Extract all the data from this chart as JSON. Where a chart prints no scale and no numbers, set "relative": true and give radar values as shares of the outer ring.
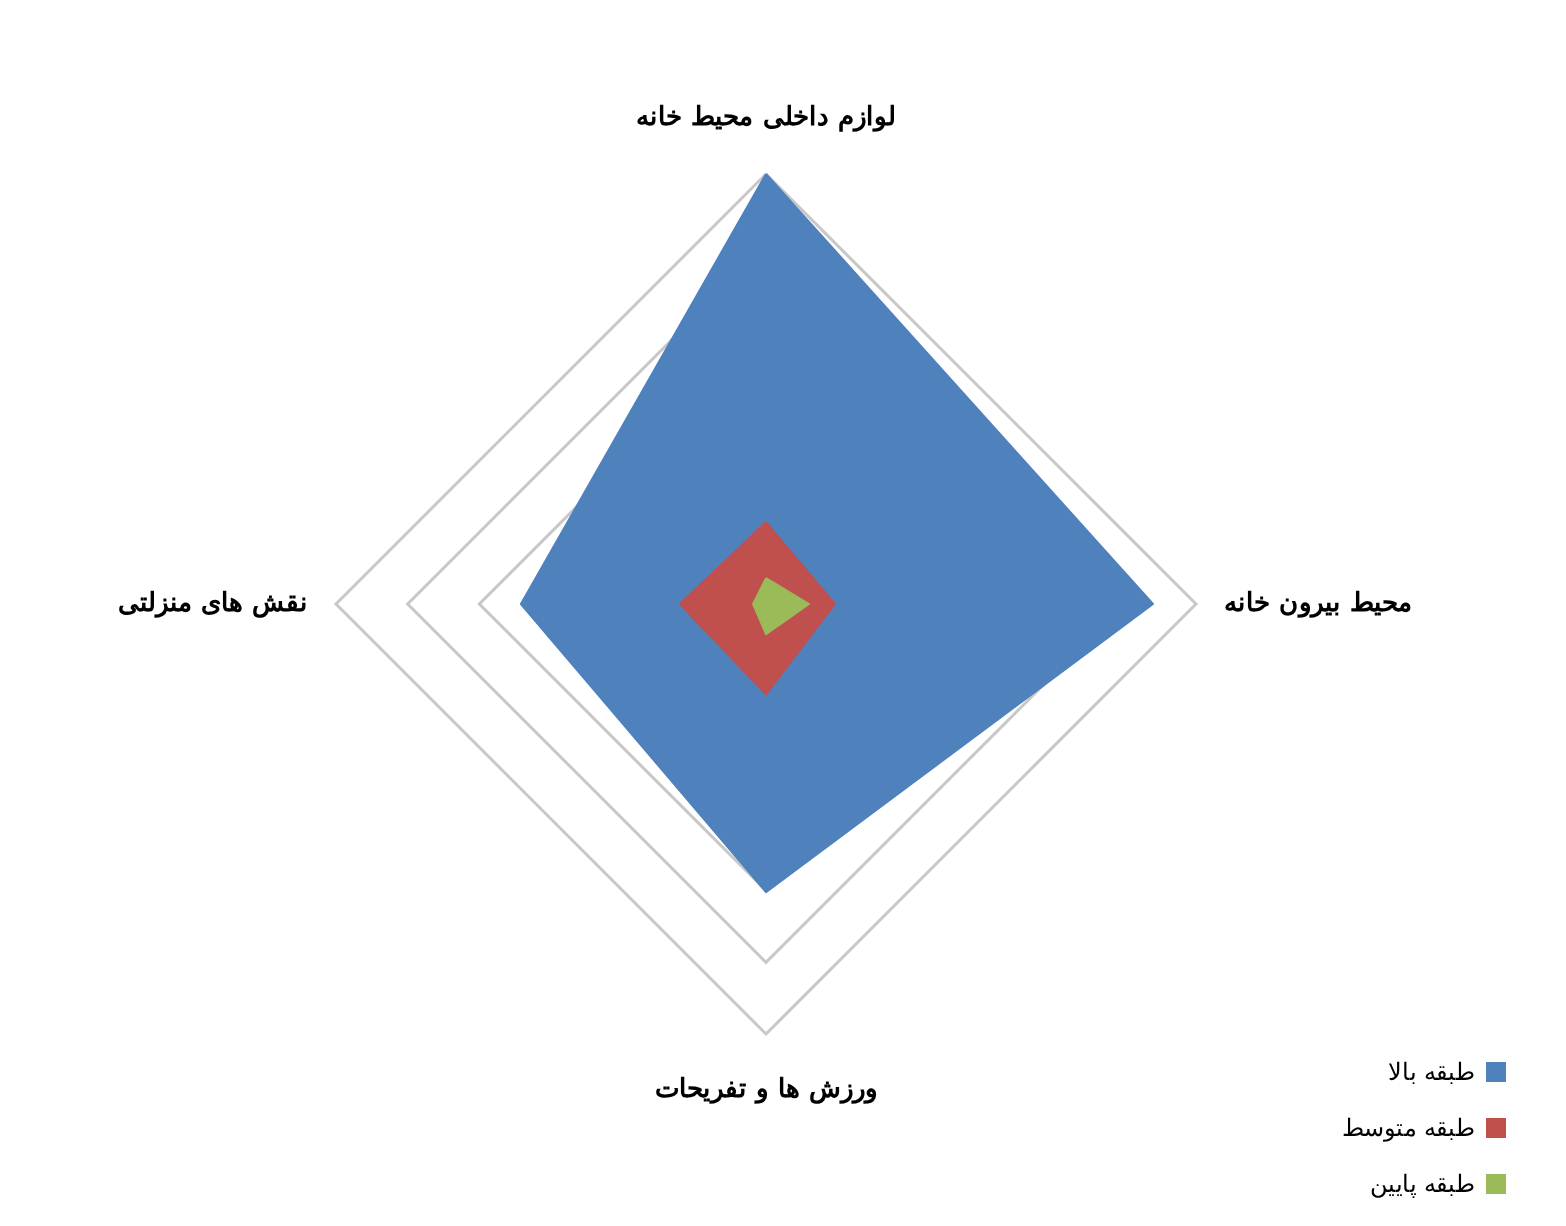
{
  "chart_data": {
    "type": "radar",
    "relative": true,
    "categories": [
      "لوازم داخلی محیط خانه",
      "محیط بیرون خانه",
      "ورزش ها و تفریحات",
      "نقش های منزلتی"
    ],
    "series": [
      {
        "name": "طبقه بالا",
        "color": "#4f81bd",
        "values": [
          1,
          0.9,
          0.67,
          0.57
        ]
      },
      {
        "name": "طبقه متوسط",
        "color": "#c0504d",
        "values": [
          0.19,
          0.16,
          0.21,
          0.2
        ]
      },
      {
        "name": "طبقه پایین",
        "color": "#9bbb59",
        "values": [
          0.06,
          0.1,
          0.07,
          0.03
        ]
      }
    ],
    "grid": true,
    "legend": "bottom right",
    "marker": "none"
  }
}
